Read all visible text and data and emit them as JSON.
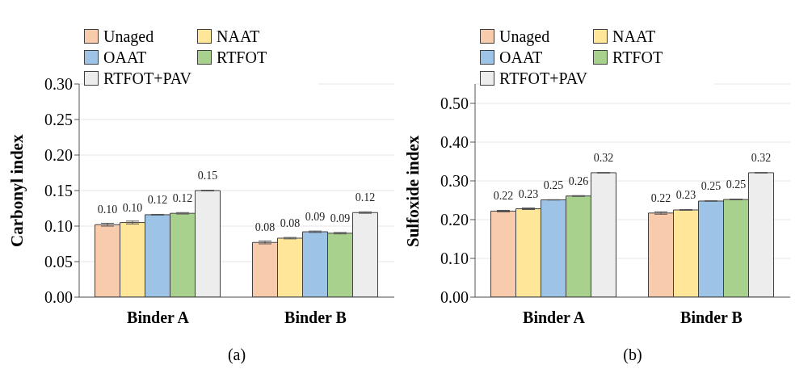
{
  "chart_data": [
    {
      "type": "bar",
      "ylabel": "Carbonyl index",
      "categories": [
        "Binder A",
        "Binder B"
      ],
      "ylim": [
        0,
        0.3
      ],
      "yticks": [
        {
          "value": 0,
          "label": "0.00"
        },
        {
          "value": 0.05,
          "label": "0.05"
        },
        {
          "value": 0.1,
          "label": "0.10"
        },
        {
          "value": 0.15,
          "label": "0.15"
        },
        {
          "value": 0.2,
          "label": "0.20"
        },
        {
          "value": 0.25,
          "label": "0.25"
        },
        {
          "value": 0.3,
          "label": "0.30"
        }
      ],
      "grid": "y",
      "legend": "top left",
      "annotations": [
        "(a)"
      ],
      "series": [
        {
          "name": "Unaged",
          "color": "#f8cbad",
          "values": [
            0.102,
            0.077
          ],
          "errors": [
            0.002,
            0.002
          ],
          "value_labels": [
            "0.10",
            "0.08"
          ]
        },
        {
          "name": "NAAT",
          "color": "#ffe699",
          "values": [
            0.105,
            0.083
          ],
          "errors": [
            0.002,
            0.001
          ],
          "value_labels": [
            "0.10",
            "0.08"
          ]
        },
        {
          "name": "OAAT",
          "color": "#9dc3e6",
          "values": [
            0.116,
            0.092
          ],
          "errors": [
            0.0005,
            0.001
          ],
          "value_labels": [
            "0.12",
            "0.09"
          ]
        },
        {
          "name": "RTFOT",
          "color": "#a9d18e",
          "values": [
            0.118,
            0.09
          ],
          "errors": [
            0.001,
            0.001
          ],
          "value_labels": [
            "0.12",
            "0.09"
          ]
        },
        {
          "name": "RTFOT+PAV",
          "color": "#ededed",
          "values": [
            0.15,
            0.119
          ],
          "errors": [
            0.0005,
            0.001
          ],
          "value_labels": [
            "0.15",
            "0.12"
          ]
        }
      ]
    },
    {
      "type": "bar",
      "ylabel": "Sulfoxide index",
      "categories": [
        "Binder A",
        "Binder B"
      ],
      "ylim": [
        0,
        0.55
      ],
      "yticks": [
        {
          "value": 0,
          "label": "0.00"
        },
        {
          "value": 0.1,
          "label": "0.10"
        },
        {
          "value": 0.2,
          "label": "0.20"
        },
        {
          "value": 0.3,
          "label": "0.30"
        },
        {
          "value": 0.4,
          "label": "0.40"
        },
        {
          "value": 0.5,
          "label": "0.50"
        }
      ],
      "grid": "y",
      "legend": "top left",
      "annotations": [
        "(b)"
      ],
      "series": [
        {
          "name": "Unaged",
          "color": "#f8cbad",
          "values": [
            0.222,
            0.217
          ],
          "errors": [
            0.002,
            0.003
          ],
          "value_labels": [
            "0.22",
            "0.22"
          ]
        },
        {
          "name": "NAAT",
          "color": "#ffe699",
          "values": [
            0.228,
            0.225
          ],
          "errors": [
            0.002,
            0.001
          ],
          "value_labels": [
            "0.23",
            "0.23"
          ]
        },
        {
          "name": "OAAT",
          "color": "#9dc3e6",
          "values": [
            0.251,
            0.248
          ],
          "errors": [
            0.0005,
            0.0005
          ],
          "value_labels": [
            "0.25",
            "0.25"
          ]
        },
        {
          "name": "RTFOT",
          "color": "#a9d18e",
          "values": [
            0.261,
            0.252
          ],
          "errors": [
            0.001,
            0.001
          ],
          "value_labels": [
            "0.26",
            "0.25"
          ]
        },
        {
          "name": "RTFOT+PAV",
          "color": "#ededed",
          "values": [
            0.321,
            0.321
          ],
          "errors": [
            0.0005,
            0.0005
          ],
          "value_labels": [
            "0.32",
            "0.32"
          ]
        }
      ]
    }
  ]
}
